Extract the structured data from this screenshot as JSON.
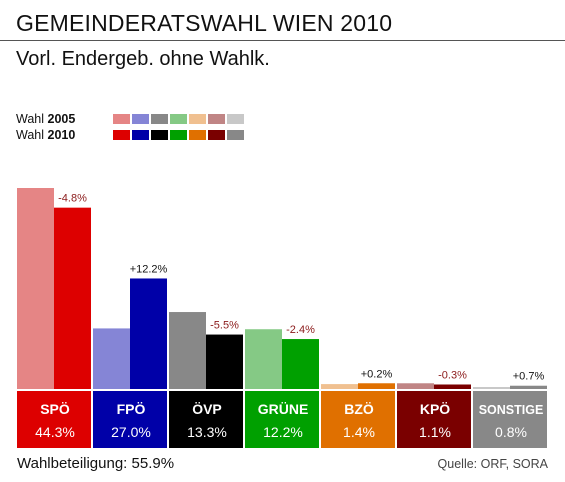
{
  "header": {
    "title": "GEMEINDERATSWAHL WIEN 2010",
    "subtitle": "Vorl. Endergeb. ohne Wahlk."
  },
  "legend": {
    "rows": [
      {
        "prefix": "Wahl",
        "year": "2005"
      },
      {
        "prefix": "Wahl",
        "year": "2010"
      }
    ]
  },
  "footer": {
    "turnout": "Wahlbeteiligung: 55.9%",
    "source": "Quelle: ORF, SORA"
  },
  "colors": {
    "change_positive": "#111111",
    "change_negative": "#8b1a1a"
  },
  "chart_data": {
    "type": "bar",
    "categories": [
      "SPÖ",
      "FPÖ",
      "ÖVP",
      "GRÜNE",
      "BZÖ",
      "KPÖ",
      "SONSTIGE"
    ],
    "series": [
      {
        "year": "2005",
        "values": [
          49.1,
          14.8,
          18.8,
          14.6,
          1.2,
          1.4,
          0.1
        ],
        "colors": [
          "#e58585",
          "#8585d6",
          "#888888",
          "#85c985",
          "#f0c090",
          "#c08585",
          "#c8c8c8"
        ]
      },
      {
        "year": "2010",
        "values": [
          44.3,
          27.0,
          13.3,
          12.2,
          1.4,
          1.1,
          0.8
        ],
        "colors": [
          "#dd0000",
          "#0000a8",
          "#000000",
          "#00a000",
          "#e07000",
          "#7a0000",
          "#888888"
        ]
      }
    ],
    "value_labels": [
      "44.3%",
      "27.0%",
      "13.3%",
      "12.2%",
      "1.4%",
      "1.1%",
      "0.8%"
    ],
    "changes": [
      "-4.8%",
      "+12.2%",
      "-5.5%",
      "-2.4%",
      "+0.2%",
      "-0.3%",
      "+0.7%"
    ],
    "ylim": [
      0,
      52
    ]
  }
}
